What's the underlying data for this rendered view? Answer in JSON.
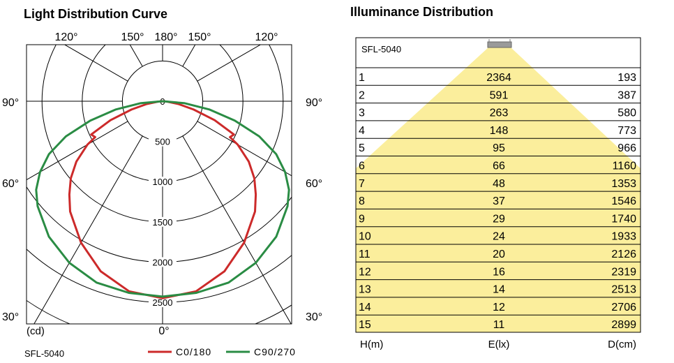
{
  "left_panel": {
    "title": "Light Distribution Curve",
    "model": "SFL-5040",
    "unit_label": "(cd)"
  },
  "right_panel": {
    "title": "Illuminance Distribution",
    "model": "SFL-5040",
    "footer": {
      "h": "H(m)",
      "e": "E(lx)",
      "d": "D(cm)"
    }
  },
  "colors": {
    "c0": "#cc2a2a",
    "c90": "#2a8c44",
    "beam": "#fbee9c"
  },
  "chart_data": [
    {
      "type": "polar",
      "title": "Light Distribution Curve",
      "unit": "(cd)",
      "radial_ticks": [
        0,
        500,
        1000,
        1500,
        2000,
        2500
      ],
      "radial_tick_labels": [
        "0",
        "500",
        "1000",
        "1500",
        "2000",
        "2500"
      ],
      "angle_labels": [
        {
          "text": "120°",
          "angle": -120
        },
        {
          "text": "150°",
          "angle": -150
        },
        {
          "text": "180°",
          "angle": 180
        },
        {
          "text": "150°",
          "angle": 150
        },
        {
          "text": "120°",
          "angle": 120
        },
        {
          "text": "90°",
          "angle": -90
        },
        {
          "text": "90°",
          "angle": 90
        },
        {
          "text": "60°",
          "angle": -60
        },
        {
          "text": "60°",
          "angle": 60
        },
        {
          "text": "30°",
          "angle": -30
        },
        {
          "text": "30°",
          "angle": 30
        },
        {
          "text": "0°",
          "angle": 0
        }
      ],
      "series": [
        {
          "name": "C0/180",
          "color": "#cc2a2a",
          "angles": [
            0,
            10,
            20,
            30,
            40,
            45,
            50,
            55,
            60,
            62,
            65,
            70,
            75,
            80,
            85,
            90
          ],
          "values": [
            2450,
            2400,
            2250,
            2030,
            1790,
            1640,
            1490,
            1310,
            1080,
            950,
            980,
            690,
            400,
            200,
            60,
            0
          ]
        },
        {
          "name": "C90/270",
          "color": "#2a8c44",
          "angles": [
            0,
            10,
            20,
            30,
            40,
            50,
            55,
            60,
            65,
            70,
            75,
            80,
            85,
            90
          ],
          "values": [
            2430,
            2420,
            2400,
            2320,
            2200,
            2030,
            1920,
            1760,
            1560,
            1280,
            930,
            590,
            270,
            0
          ]
        }
      ]
    },
    {
      "type": "table",
      "title": "Illuminance Distribution",
      "columns": [
        "H(m)",
        "E(lx)",
        "D(cm)"
      ],
      "rows": [
        {
          "h": "1",
          "e": "2364",
          "d": "193"
        },
        {
          "h": "2",
          "e": "591",
          "d": "387"
        },
        {
          "h": "3",
          "e": "263",
          "d": "580"
        },
        {
          "h": "4",
          "e": "148",
          "d": "773"
        },
        {
          "h": "5",
          "e": "95",
          "d": "966"
        },
        {
          "h": "6",
          "e": "66",
          "d": "1160"
        },
        {
          "h": "7",
          "e": "48",
          "d": "1353"
        },
        {
          "h": "8",
          "e": "37",
          "d": "1546"
        },
        {
          "h": "9",
          "e": "29",
          "d": "1740"
        },
        {
          "h": "10",
          "e": "24",
          "d": "1933"
        },
        {
          "h": "11",
          "e": "20",
          "d": "2126"
        },
        {
          "h": "12",
          "e": "16",
          "d": "2319"
        },
        {
          "h": "13",
          "e": "14",
          "d": "2513"
        },
        {
          "h": "14",
          "e": "12",
          "d": "2706"
        },
        {
          "h": "15",
          "e": "11",
          "d": "2899"
        }
      ]
    }
  ]
}
